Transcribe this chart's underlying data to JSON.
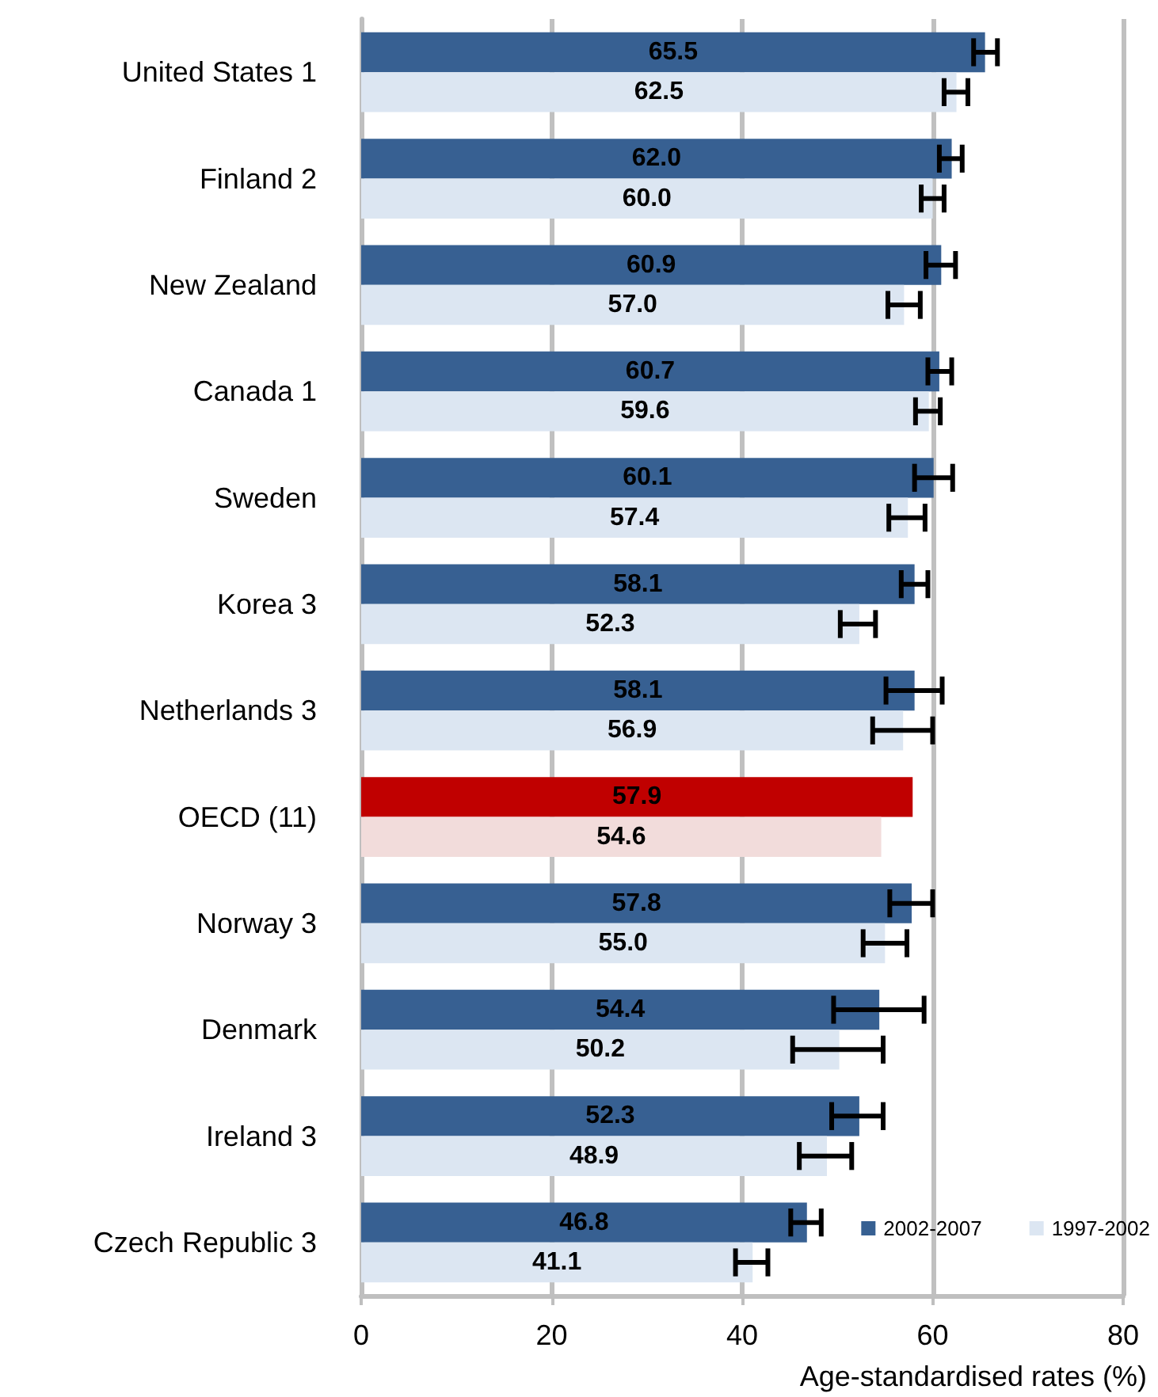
{
  "chart_data": {
    "type": "bar",
    "orientation": "horizontal",
    "xlabel": "Age-standardised rates (%)",
    "categories": [
      "United States 1",
      "Finland 2",
      "New Zealand",
      "Canada 1",
      "Sweden",
      "Korea 3",
      "Netherlands 3",
      "OECD (11)",
      "Norway 3",
      "Denmark",
      "Ireland 3",
      "Czech Republic 3"
    ],
    "series": [
      {
        "name": "2002-2007",
        "color": "#376092",
        "colors": [
          "#376092",
          "#376092",
          "#376092",
          "#376092",
          "#376092",
          "#376092",
          "#376092",
          "#c00000",
          "#376092",
          "#376092",
          "#376092",
          "#376092"
        ],
        "values": [
          65.5,
          62.0,
          60.9,
          60.7,
          60.1,
          58.1,
          58.1,
          57.9,
          57.8,
          54.4,
          52.3,
          46.8
        ],
        "value_labels": [
          "65.5",
          "62.0",
          "60.9",
          "60.7",
          "60.1",
          "58.1",
          "58.1",
          "57.9",
          "57.8",
          "54.4",
          "52.3",
          "46.8"
        ],
        "errors": [
          [
            64.3,
            66.8
          ],
          [
            60.7,
            63.1
          ],
          [
            59.3,
            62.4
          ],
          [
            59.5,
            62.0
          ],
          [
            58.1,
            62.1
          ],
          [
            56.7,
            59.5
          ],
          [
            55.1,
            61.0
          ],
          null,
          [
            55.5,
            60.0
          ],
          [
            49.6,
            59.1
          ],
          [
            49.4,
            54.8
          ],
          [
            45.1,
            48.3
          ]
        ]
      },
      {
        "name": "1997-2002",
        "color": "#dce6f2",
        "colors": [
          "#dce6f2",
          "#dce6f2",
          "#dce6f2",
          "#dce6f2",
          "#dce6f2",
          "#dce6f2",
          "#dce6f2",
          "#f2dcdb",
          "#dce6f2",
          "#dce6f2",
          "#dce6f2",
          "#dce6f2"
        ],
        "values": [
          62.5,
          60.0,
          57.0,
          59.6,
          57.4,
          52.3,
          56.9,
          54.6,
          55.0,
          50.2,
          48.9,
          41.1
        ],
        "value_labels": [
          "62.5",
          "60.0",
          "57.0",
          "59.6",
          "57.4",
          "52.3",
          "56.9",
          "54.6",
          "55.0",
          "50.2",
          "48.9",
          "41.1"
        ],
        "errors": [
          [
            61.2,
            63.7
          ],
          [
            58.8,
            61.2
          ],
          [
            55.3,
            58.7
          ],
          [
            58.2,
            60.8
          ],
          [
            55.4,
            59.2
          ],
          [
            50.3,
            54.0
          ],
          [
            53.7,
            60.0
          ],
          null,
          [
            52.7,
            57.3
          ],
          [
            45.3,
            54.8
          ],
          [
            46.0,
            51.5
          ],
          [
            39.3,
            42.7
          ]
        ]
      }
    ],
    "xlim": [
      0,
      80
    ],
    "xticks": [
      0,
      20,
      40,
      60,
      80
    ],
    "grid": "x",
    "legend": "bottom right"
  }
}
